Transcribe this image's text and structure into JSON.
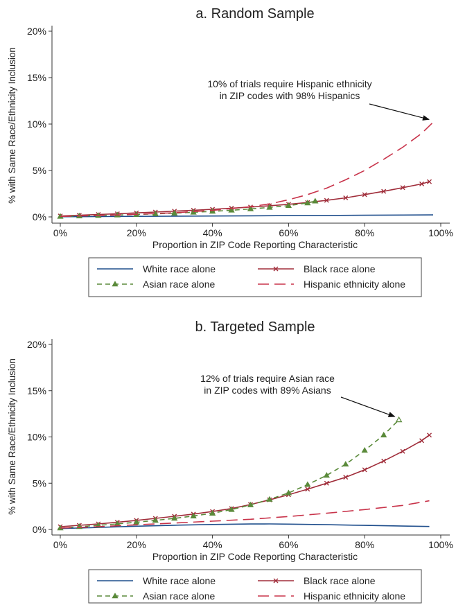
{
  "chart_data": [
    {
      "type": "line",
      "title": "a. Random Sample",
      "xlabel": "Proportion in ZIP Code Reporting Characteristic",
      "ylabel": "% with Same Race/Ethnicity Inclusion",
      "xlim": [
        0,
        100
      ],
      "ylim": [
        0,
        20
      ],
      "x_ticks": [
        "0%",
        "20%",
        "40%",
        "60%",
        "80%",
        "100%"
      ],
      "y_ticks": [
        "0%",
        "5%",
        "10%",
        "15%",
        "20%"
      ],
      "grid": false,
      "legend_position": "bottom",
      "annotation": {
        "lines": [
          "10% of trials require Hispanic ethnicity",
          "in ZIP codes with 98% Hispanics"
        ],
        "target": [
          98,
          10.2
        ]
      },
      "series": [
        {
          "name": "White race alone",
          "color": "#1f4e8c",
          "style": "solid",
          "marker": "none",
          "x": [
            0,
            10,
            20,
            30,
            40,
            50,
            60,
            70,
            80,
            90,
            98
          ],
          "y": [
            0.02,
            0.04,
            0.06,
            0.08,
            0.1,
            0.12,
            0.14,
            0.16,
            0.18,
            0.2,
            0.22
          ]
        },
        {
          "name": "Black race alone",
          "color": "#a02d3a",
          "style": "solid",
          "marker": "x",
          "x": [
            0,
            5,
            10,
            15,
            20,
            25,
            30,
            35,
            40,
            45,
            50,
            55,
            60,
            65,
            70,
            75,
            80,
            85,
            90,
            95,
            97
          ],
          "y": [
            0.1,
            0.18,
            0.26,
            0.34,
            0.43,
            0.52,
            0.62,
            0.72,
            0.82,
            0.94,
            1.06,
            1.2,
            1.36,
            1.55,
            1.78,
            2.05,
            2.4,
            2.75,
            3.15,
            3.55,
            3.8
          ]
        },
        {
          "name": "Asian race alone",
          "color": "#5a8a3a",
          "style": "dashed",
          "marker": "triangle",
          "x": [
            0,
            5,
            10,
            15,
            20,
            25,
            30,
            35,
            40,
            45,
            50,
            55,
            60,
            65,
            67
          ],
          "y": [
            0.05,
            0.1,
            0.15,
            0.2,
            0.26,
            0.33,
            0.4,
            0.5,
            0.6,
            0.72,
            0.86,
            1.02,
            1.22,
            1.5,
            1.7
          ]
        },
        {
          "name": "Hispanic ethnicity alone",
          "color": "#c8334a",
          "style": "longdash",
          "marker": "none",
          "x": [
            0,
            10,
            20,
            30,
            40,
            50,
            55,
            60,
            65,
            70,
            75,
            80,
            85,
            90,
            95,
            98
          ],
          "y": [
            0.05,
            0.15,
            0.28,
            0.45,
            0.7,
            1.1,
            1.4,
            1.85,
            2.4,
            3.1,
            4.0,
            5.0,
            6.2,
            7.5,
            9.0,
            10.2
          ]
        }
      ]
    },
    {
      "type": "line",
      "title": "b. Targeted Sample",
      "xlabel": "Proportion in ZIP Code Reporting Characteristic",
      "ylabel": "% with Same Race/Ethnicity Inclusion",
      "xlim": [
        0,
        100
      ],
      "ylim": [
        0,
        20
      ],
      "x_ticks": [
        "0%",
        "20%",
        "40%",
        "60%",
        "80%",
        "100%"
      ],
      "y_ticks": [
        "0%",
        "5%",
        "10%",
        "15%",
        "20%"
      ],
      "grid": false,
      "legend_position": "bottom",
      "annotation": {
        "lines": [
          "12% of trials require Asian race",
          "in ZIP codes with 89% Asians"
        ],
        "target": [
          89,
          11.9
        ]
      },
      "series": [
        {
          "name": "White race alone",
          "color": "#1f4e8c",
          "style": "solid",
          "marker": "none",
          "x": [
            0,
            10,
            20,
            30,
            40,
            50,
            55,
            60,
            70,
            80,
            90,
            97
          ],
          "y": [
            0.1,
            0.22,
            0.35,
            0.46,
            0.54,
            0.59,
            0.6,
            0.58,
            0.52,
            0.44,
            0.37,
            0.32
          ]
        },
        {
          "name": "Black race alone",
          "color": "#a02d3a",
          "style": "solid",
          "marker": "x",
          "x": [
            0,
            5,
            10,
            15,
            20,
            25,
            30,
            35,
            40,
            45,
            50,
            55,
            60,
            65,
            70,
            75,
            80,
            85,
            90,
            95,
            97
          ],
          "y": [
            0.3,
            0.45,
            0.6,
            0.78,
            0.98,
            1.2,
            1.42,
            1.66,
            1.94,
            2.26,
            2.7,
            3.2,
            3.75,
            4.35,
            5.0,
            5.65,
            6.45,
            7.4,
            8.45,
            9.6,
            10.2
          ]
        },
        {
          "name": "Asian race alone",
          "color": "#5a8a3a",
          "style": "dashed",
          "marker": "triangle",
          "x": [
            0,
            5,
            10,
            15,
            20,
            25,
            30,
            35,
            40,
            45,
            50,
            55,
            60,
            65,
            70,
            75,
            80,
            85,
            89
          ],
          "y": [
            0.15,
            0.3,
            0.45,
            0.6,
            0.78,
            0.98,
            1.2,
            1.45,
            1.75,
            2.15,
            2.65,
            3.25,
            3.95,
            4.85,
            5.85,
            7.05,
            8.55,
            10.2,
            11.85
          ]
        },
        {
          "name": "Hispanic ethnicity alone",
          "color": "#c8334a",
          "style": "longdash",
          "marker": "none",
          "x": [
            0,
            10,
            20,
            30,
            40,
            50,
            60,
            70,
            80,
            90,
            97
          ],
          "y": [
            0.15,
            0.3,
            0.5,
            0.7,
            0.9,
            1.1,
            1.4,
            1.75,
            2.15,
            2.6,
            3.1
          ]
        }
      ]
    }
  ]
}
